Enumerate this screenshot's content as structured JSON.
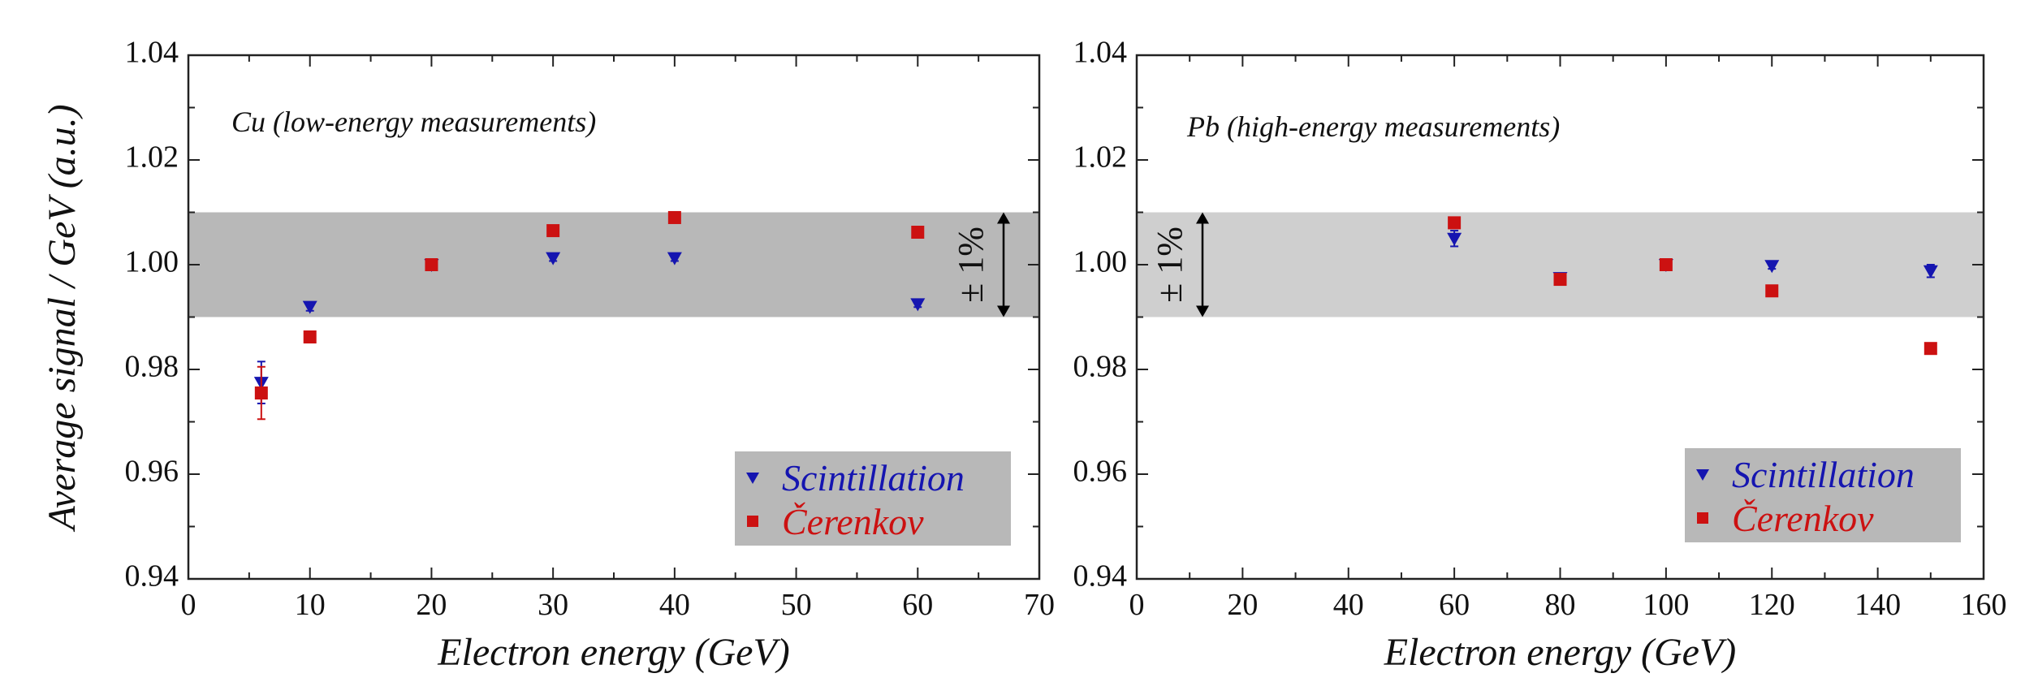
{
  "chart_data": [
    {
      "type": "scatter",
      "title": "Cu (low-energy measurements)",
      "xlabel": "Electron energy (GeV)",
      "ylabel": "Average signal / GeV (a.u.)",
      "xlim": [
        0,
        70
      ],
      "ylim": [
        0.94,
        1.04
      ],
      "xticks": [
        "0",
        "10",
        "20",
        "30",
        "40",
        "50",
        "60",
        "70"
      ],
      "yticks": [
        "0.94",
        "0.96",
        "0.98",
        "1.00",
        "1.02",
        "1.04"
      ],
      "band": {
        "low": 0.99,
        "high": 1.01,
        "label": "± 1%",
        "color": "#b8b8b8"
      },
      "legend_position": "bottom-right",
      "series": [
        {
          "name": "Scintillation",
          "marker": "triangle-down",
          "color": "#1515b0",
          "x": [
            6,
            10,
            20,
            30,
            40,
            60
          ],
          "y": [
            0.9775,
            0.992,
            1.0,
            1.0013,
            1.0013,
            0.9925
          ],
          "err": [
            0.004,
            0.0008,
            0.0006,
            0.0006,
            0.0006,
            0.0006
          ]
        },
        {
          "name": "Čerenkov",
          "marker": "square",
          "color": "#cc1111",
          "x": [
            6,
            10,
            20,
            30,
            40,
            60
          ],
          "y": [
            0.9755,
            0.9862,
            1.0,
            1.0065,
            1.009,
            1.0062
          ],
          "err": [
            0.005,
            0.0008,
            0.0006,
            0.0006,
            0.0006,
            0.0006
          ]
        }
      ]
    },
    {
      "type": "scatter",
      "title": "Pb (high-energy measurements)",
      "xlabel": "Electron energy (GeV)",
      "ylabel": "",
      "xlim": [
        0,
        160
      ],
      "ylim": [
        0.94,
        1.04
      ],
      "xticks": [
        "0",
        "20",
        "40",
        "60",
        "80",
        "100",
        "120",
        "140",
        "160"
      ],
      "yticks": [
        "0.94",
        "0.96",
        "0.98",
        "1.00",
        "1.02",
        "1.04"
      ],
      "band": {
        "low": 0.99,
        "high": 1.01,
        "label": "± 1%",
        "color": "#cfcfcf"
      },
      "legend_position": "bottom-right",
      "series": [
        {
          "name": "Scintillation",
          "marker": "triangle-down",
          "color": "#1515b0",
          "x": [
            60,
            80,
            100,
            120,
            150
          ],
          "y": [
            1.005,
            0.9975,
            1.0,
            0.9998,
            0.9988
          ],
          "err": [
            0.0015,
            0.0006,
            0.0006,
            0.0006,
            0.0012
          ]
        },
        {
          "name": "Čerenkov",
          "marker": "square",
          "color": "#cc1111",
          "x": [
            60,
            80,
            100,
            120,
            150
          ],
          "y": [
            1.008,
            0.9972,
            1.0,
            0.995,
            0.984
          ],
          "err": [
            0.0006,
            0.0006,
            0.0006,
            0.0006,
            0.0006
          ]
        }
      ]
    }
  ]
}
